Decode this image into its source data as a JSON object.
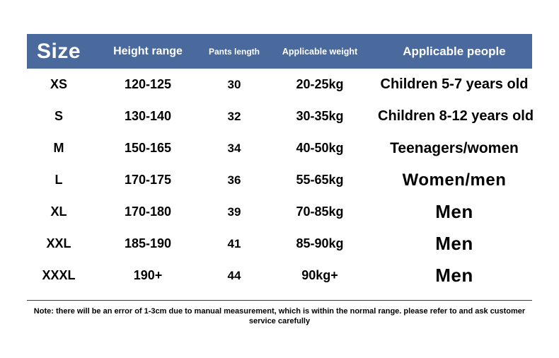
{
  "colors": {
    "header_bg": "#4a6a9d",
    "header_text": "#ffffff",
    "body_text": "#000000"
  },
  "table": {
    "headers": [
      {
        "label": "Size"
      },
      {
        "label": "Height range"
      },
      {
        "label": "Pants length"
      },
      {
        "label": "Applicable weight"
      },
      {
        "label": "Applicable people"
      }
    ],
    "rows": [
      {
        "size": "XS",
        "height": "120-125",
        "pants": "30",
        "weight": "20-25kg",
        "people": "Children 5-7 years old"
      },
      {
        "size": "S",
        "height": "130-140",
        "pants": "32",
        "weight": "30-35kg",
        "people": "Children 8-12 years old"
      },
      {
        "size": "M",
        "height": "150-165",
        "pants": "34",
        "weight": "40-50kg",
        "people": "Teenagers/women"
      },
      {
        "size": "L",
        "height": "170-175",
        "pants": "36",
        "weight": "55-65kg",
        "people": "Women/men"
      },
      {
        "size": "XL",
        "height": "170-180",
        "pants": "39",
        "weight": "70-85kg",
        "people": "Men"
      },
      {
        "size": "XXL",
        "height": "185-190",
        "pants": "41",
        "weight": "85-90kg",
        "people": "Men"
      },
      {
        "size": "XXXL",
        "height": "190+",
        "pants": "44",
        "weight": "90kg+",
        "people": "Men"
      }
    ]
  },
  "note": {
    "text": "Note: there will be an error of 1-3cm due to manual measurement, which is within the normal range. please refer to and ask customer service carefully"
  }
}
